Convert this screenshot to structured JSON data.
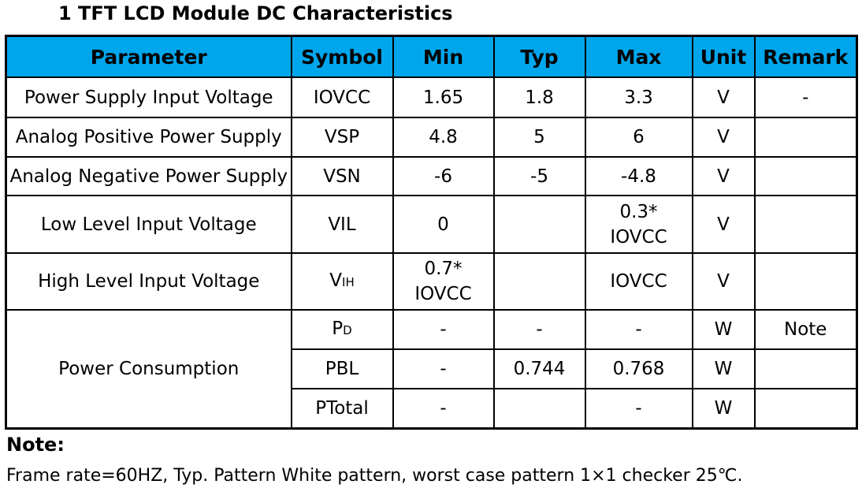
{
  "title": "1 TFT LCD Module DC Characteristics",
  "headers": {
    "parameter": "Parameter",
    "symbol": "Symbol",
    "min": "Min",
    "typ": "Typ",
    "max": "Max",
    "unit": "Unit",
    "remark": "Remark"
  },
  "rows": [
    {
      "parameter": "Power Supply Input Voltage",
      "symbol": "IOVCC",
      "min": "1.65",
      "typ": "1.8",
      "max": "3.3",
      "unit": "V",
      "remark": "-"
    },
    {
      "parameter": "Analog Positive Power Supply",
      "symbol": "VSP",
      "min": "4.8",
      "typ": "5",
      "max": "6",
      "unit": "V",
      "remark": ""
    },
    {
      "parameter": "Analog Negative Power Supply",
      "symbol": "VSN",
      "min": "-6",
      "typ": "-5",
      "max": "-4.8",
      "unit": "V",
      "remark": ""
    },
    {
      "parameter": "Low Level Input Voltage",
      "symbol": "VIL",
      "min": "0",
      "typ": "",
      "max_line1": "0.3*",
      "max_line2": "IOVCC",
      "unit": "V",
      "remark": ""
    },
    {
      "parameter": "High Level Input Voltage",
      "symbol_main": "V",
      "symbol_sub": "IH",
      "min_line1": "0.7*",
      "min_line2": "IOVCC",
      "typ": "",
      "max": "IOVCC",
      "unit": "V",
      "remark": ""
    }
  ],
  "power": {
    "parameter": "Power Consumption",
    "items": [
      {
        "symbol_main": "P",
        "symbol_sub": "D",
        "min": "-",
        "typ": "-",
        "max": "-",
        "unit": "W",
        "remark": "Note"
      },
      {
        "symbol": "PBL",
        "min": "-",
        "typ": "0.744",
        "max": "0.768",
        "unit": "W",
        "remark": ""
      },
      {
        "symbol": "PTotal",
        "min": "-",
        "typ": "",
        "max": "-",
        "unit": "W",
        "remark": ""
      }
    ]
  },
  "note": {
    "label": "Note:",
    "text": "Frame rate=60HZ, Typ. Pattern White pattern, worst case pattern 1×1 checker 25℃."
  }
}
